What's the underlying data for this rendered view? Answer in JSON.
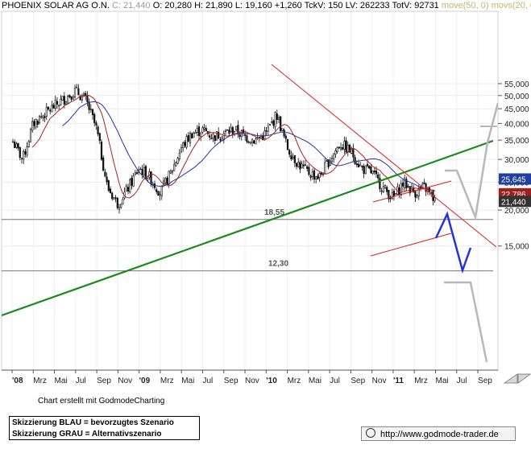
{
  "header": {
    "name": "PHOENIX SOLAR AG  O.N.",
    "close": "C: 21,440",
    "open": "O: 20,280",
    "high": "H: 21,890",
    "low": "L: 19,160",
    "change": "+1,260",
    "tickv": "TckV: 150",
    "lv": "LV: 262233",
    "totv": "TotV: 92731",
    "ma1": "move(50, 0)",
    "ma2": "movs(20, 0)"
  },
  "credit": "Chart erstellt mit GodmodeCharting",
  "legend": {
    "line1": "Skizzierung BLAU = bevorzugtes Szenario",
    "line2": "Skizzierung GRAU = Alternativszenario"
  },
  "url": "http://www.godmode-trader.de",
  "chart_data": {
    "type": "line",
    "subtype": "candlestick",
    "y_scale": "log",
    "ylim": [
      11.5,
      57
    ],
    "y_ticks": [
      "15,000",
      "20,000",
      "25,000",
      "30,000",
      "35,000",
      "40,000",
      "45,000",
      "50,000",
      "55,000"
    ],
    "x_ticks": [
      "'08",
      "Mrz",
      "Mai",
      "Jul",
      "Sep",
      "Nov",
      "'09",
      "Mrz",
      "Mai",
      "Jul",
      "Sep",
      "Nov",
      "'10",
      "Mrz",
      "Mai",
      "Jul",
      "Sep",
      "Nov",
      "'11",
      "Mrz",
      "Mai",
      "Jul",
      "Sep"
    ],
    "price_path": {
      "x": [
        "2008-01",
        "2008-02",
        "2008-03",
        "2008-04",
        "2008-05",
        "2008-06",
        "2008-07",
        "2008-08",
        "2008-09",
        "2008-10",
        "2008-11",
        "2008-12",
        "2009-01",
        "2009-02",
        "2009-03",
        "2009-04",
        "2009-05",
        "2009-06",
        "2009-07",
        "2009-08",
        "2009-09",
        "2009-10",
        "2009-11",
        "2009-12",
        "2010-01",
        "2010-02",
        "2010-03",
        "2010-04",
        "2010-05",
        "2010-06",
        "2010-07",
        "2010-08",
        "2010-09",
        "2010-10",
        "2010-11",
        "2010-12",
        "2011-01",
        "2011-02",
        "2011-03",
        "2011-04",
        "2011-05"
      ],
      "close": [
        35,
        30,
        40,
        43,
        46,
        49,
        52,
        48,
        38,
        24,
        21,
        24,
        28,
        26,
        23,
        27,
        33,
        37,
        38,
        36,
        37,
        38,
        36,
        35,
        37,
        43,
        33,
        29,
        27,
        26,
        30,
        34,
        32,
        28,
        27,
        24,
        22,
        25,
        23,
        24,
        21.44
      ]
    },
    "moving_averages": [
      {
        "name": "move(50, 0)",
        "color": "#2233aa"
      },
      {
        "name": "movs(20, 0)",
        "color": "#aa2222"
      }
    ],
    "price_tags": [
      {
        "value": 25.645,
        "label": "25,645",
        "color": "#1f3f9f"
      },
      {
        "value": 22.786,
        "label": "22,786",
        "color": "#9f1f1f"
      },
      {
        "value": 21.44,
        "label": "21,440",
        "color": "#333333"
      }
    ],
    "horizontal_levels": [
      {
        "value": 18.55,
        "label": "18,55"
      },
      {
        "value": 12.3,
        "label": "12,30"
      }
    ],
    "trendlines": [
      {
        "name": "green support",
        "color": "#1a8a1a"
      },
      {
        "name": "red resistance",
        "color": "#e02020"
      },
      {
        "name": "red channel",
        "color": "#e02020"
      }
    ],
    "scenarios": [
      {
        "label": "Skizzierung BLAU",
        "color": "#2233dd"
      },
      {
        "label": "Skizzierung GRAU",
        "color": "#b8b8b8"
      }
    ],
    "grid": true
  }
}
